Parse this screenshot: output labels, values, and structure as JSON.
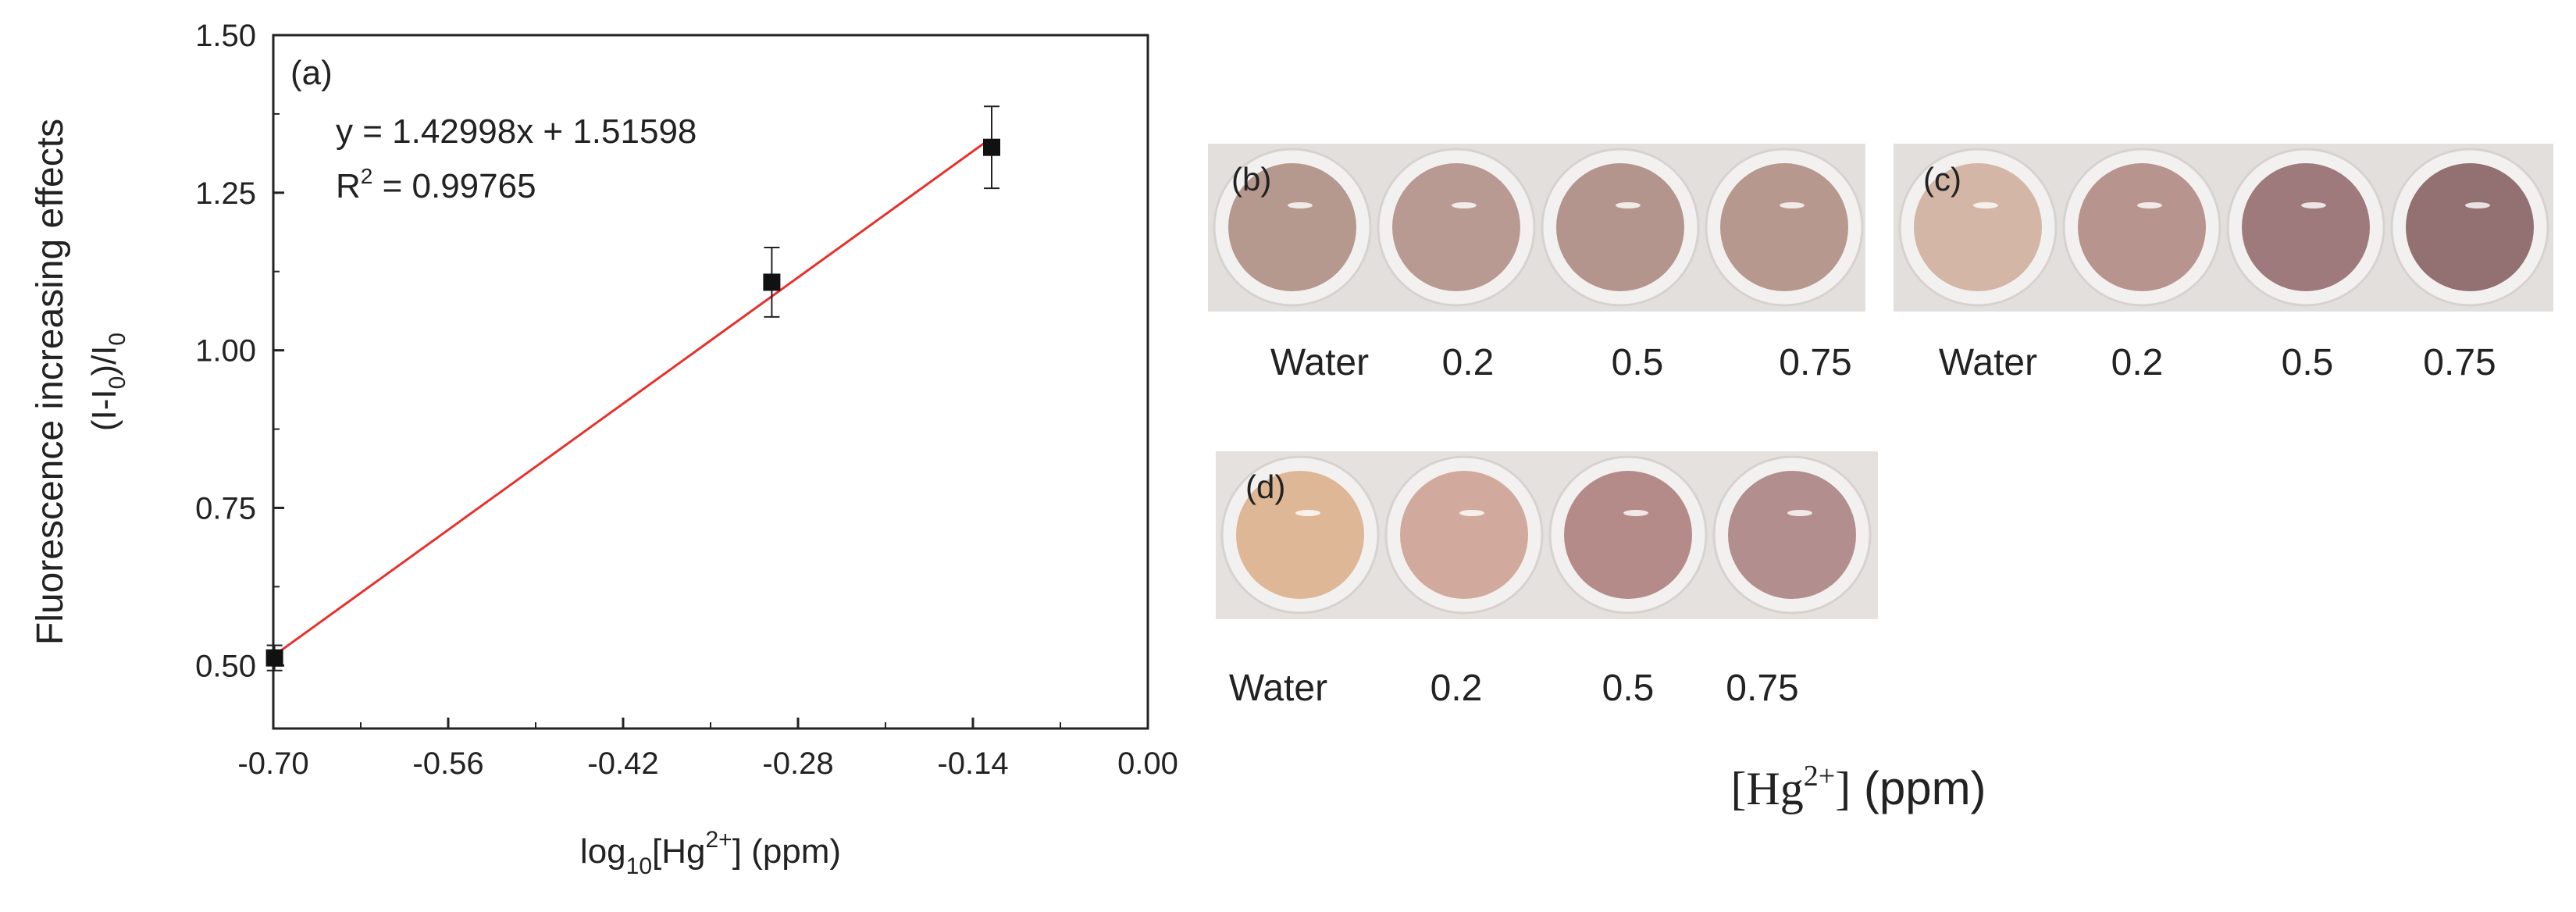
{
  "chart_data": {
    "type": "scatter",
    "panel_label": "(a)",
    "xlabel": {
      "base": "log",
      "sub": "10",
      "mid": "[Hg",
      "sup": "2+",
      "end": "] (ppm)"
    },
    "ylabel": {
      "line1": "Fluorescence increasing effects",
      "line2_a": "(I-I",
      "line2_sub1": "0",
      "line2_b": ")/I",
      "line2_sub2": "0"
    },
    "xlim": [
      -0.7,
      0.0
    ],
    "ylim": [
      0.4,
      1.5
    ],
    "xticks": [
      "-0.70",
      "-0.56",
      "-0.42",
      "-0.28",
      "-0.14",
      "0.00"
    ],
    "yticks": [
      "0.50",
      "0.75",
      "1.00",
      "1.25",
      "1.50"
    ],
    "equation": "y = 1.42998x + 1.51598",
    "r2": {
      "prefix": "R",
      "sup": "2",
      "value": " = 0.99765"
    },
    "fit": {
      "slope": 1.42998,
      "intercept": 1.51598,
      "x_range": [
        -0.7,
        -0.13
      ],
      "color": "#e8302a"
    },
    "points": [
      {
        "x": -0.699,
        "y": 0.512,
        "err": 0.02
      },
      {
        "x": -0.301,
        "y": 1.108,
        "err": 0.055
      },
      {
        "x": -0.125,
        "y": 1.322,
        "err": 0.065
      }
    ]
  },
  "photos": {
    "panels": [
      {
        "id": "b",
        "label": "(b)",
        "wells": [
          "#b5988e",
          "#b89a92",
          "#b4958e",
          "#b7988f"
        ],
        "captions": [
          "Water",
          "0.2",
          "0.5",
          "0.75"
        ]
      },
      {
        "id": "c",
        "label": "(c)",
        "wells": [
          "#d3b6a6",
          "#b8948f",
          "#9f7a7c",
          "#937071"
        ],
        "captions": [
          "Water",
          "0.2",
          "0.5",
          "0.75"
        ]
      },
      {
        "id": "d",
        "label": "(d)",
        "wells": [
          "#ddb796",
          "#d2aa9d",
          "#b58b8a",
          "#b38e8e"
        ],
        "captions": [
          "Water",
          "0.2",
          "0.5",
          "0.75"
        ]
      }
    ],
    "axis_title": {
      "a": "[Hg",
      "sup": "2+",
      "b": "]",
      "c": " (ppm)"
    }
  }
}
